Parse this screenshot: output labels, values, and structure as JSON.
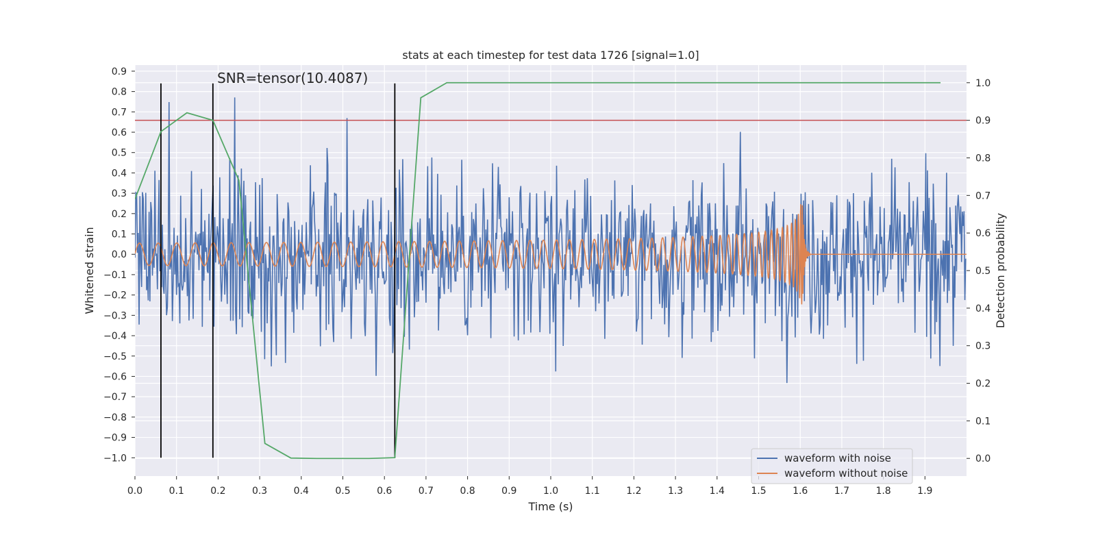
{
  "chart_data": {
    "type": "line",
    "title": "stats at each timestep for test data 1726 [signal=1.0]",
    "xlabel": "Time (s)",
    "ylabel": "Whitened strain",
    "y2label": "Detection probability",
    "xlim": [
      0.0,
      2.0
    ],
    "ylim": [
      -1.09,
      0.93
    ],
    "y2lim": [
      -0.047,
      1.047
    ],
    "x_ticks": [
      "0.0",
      "0.1",
      "0.2",
      "0.3",
      "0.4",
      "0.5",
      "0.6",
      "0.7",
      "0.8",
      "0.9",
      "1.0",
      "1.1",
      "1.2",
      "1.3",
      "1.4",
      "1.5",
      "1.6",
      "1.7",
      "1.8",
      "1.9"
    ],
    "y_ticks": [
      "0.9",
      "0.8",
      "0.7",
      "0.6",
      "0.5",
      "0.4",
      "0.3",
      "0.2",
      "0.1",
      "0.0",
      "−0.1",
      "−0.2",
      "−0.3",
      "−0.4",
      "−0.5",
      "−0.6",
      "−0.7",
      "−0.8",
      "−0.9",
      "−1.0"
    ],
    "y2_ticks": [
      "1.0",
      "0.9",
      "0.8",
      "0.7",
      "0.6",
      "0.5",
      "0.4",
      "0.3",
      "0.2",
      "0.1",
      "0.0"
    ],
    "grid": true,
    "legend_position": "lower-right",
    "annotation": "SNR=tensor(10.4087)",
    "series": [
      {
        "name": "waveform with noise",
        "color": "#4c72b0",
        "axis": "left",
        "noise_std": 0.28,
        "sample_step_s": 0.002
      },
      {
        "name": "waveform without noise",
        "color": "#dd8452",
        "axis": "left",
        "chirp": {
          "f0_hz": 22,
          "t_merge_s": 1.605,
          "amp_start": 0.055,
          "amp_peak": 0.28,
          "ringdown_end_s": 1.625
        }
      },
      {
        "color": "#55a868",
        "axis": "right",
        "x": [
          0.0,
          0.0625,
          0.125,
          0.1875,
          0.25,
          0.3125,
          0.375,
          0.4375,
          0.5,
          0.5625,
          0.625,
          0.6875,
          0.75,
          0.8125,
          1.0,
          1.5,
          1.9375
        ],
        "y": [
          0.69,
          0.87,
          0.92,
          0.9,
          0.74,
          0.04,
          0.001,
          0.0,
          0.0,
          0.0,
          0.002,
          0.96,
          1.0,
          1.0,
          1.0,
          1.0,
          1.0
        ]
      }
    ],
    "threshold": {
      "axis": "right",
      "value": 0.9,
      "color": "#c44e52"
    },
    "markers": {
      "x": [
        0.0625,
        0.1875,
        0.625
      ],
      "y_range": [
        -1.0,
        0.84
      ],
      "color": "#000000"
    }
  }
}
